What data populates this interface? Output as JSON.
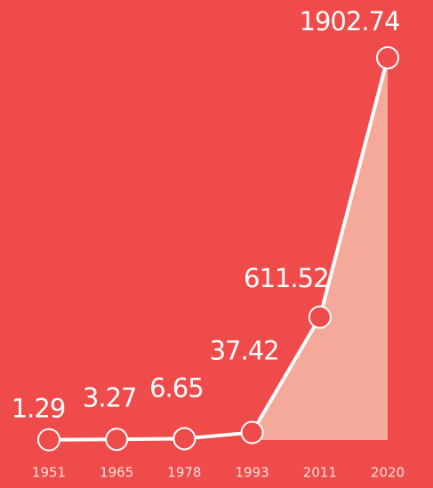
{
  "chart_data": {
    "type": "line",
    "categories": [
      "1951",
      "1965",
      "1978",
      "1993",
      "2011",
      "2020"
    ],
    "values": [
      1.29,
      3.27,
      6.65,
      37.42,
      611.52,
      1902.74
    ],
    "color": "#ffffff",
    "ylim": [
      0,
      1902.74
    ]
  }
}
